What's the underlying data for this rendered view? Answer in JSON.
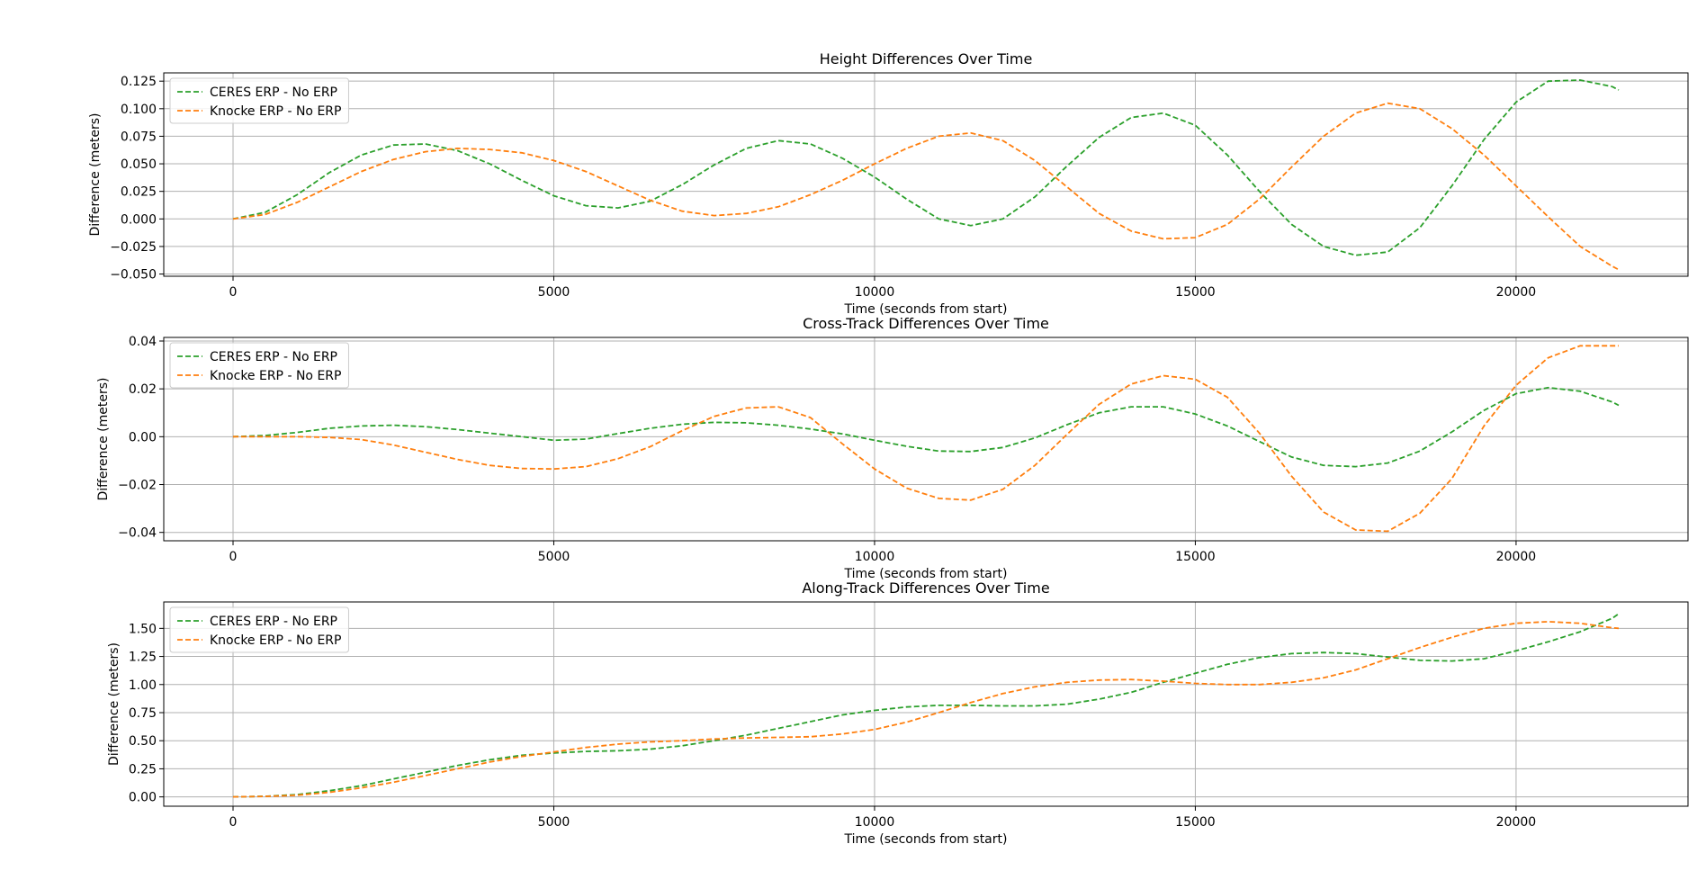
{
  "chart_data": [
    {
      "type": "line",
      "title": "Height Differences Over Time",
      "xlabel": "Time (seconds from start)",
      "ylabel": "Difference (meters)",
      "xlim": [
        -1080,
        22680
      ],
      "ylim": [
        -0.052,
        0.1325
      ],
      "xticks": [
        0,
        5000,
        10000,
        15000,
        20000
      ],
      "xtick_labels": [
        "0",
        "5000",
        "10000",
        "15000",
        "20000"
      ],
      "yticks": [
        -0.05,
        -0.025,
        0.0,
        0.025,
        0.05,
        0.075,
        0.1,
        0.125
      ],
      "ytick_labels": [
        "−0.050",
        "−0.025",
        "0.000",
        "0.025",
        "0.050",
        "0.075",
        "0.100",
        "0.125"
      ],
      "grid": true,
      "legend_position": "upper-left",
      "series": [
        {
          "name": "CERES ERP - No ERP",
          "color": "#2ca02c",
          "style": "dashed",
          "x": [
            0,
            500,
            1000,
            1500,
            2000,
            2500,
            3000,
            3500,
            4000,
            4500,
            5000,
            5500,
            6000,
            6500,
            7000,
            7500,
            8000,
            8500,
            9000,
            9500,
            10000,
            10500,
            11000,
            11500,
            12000,
            12500,
            13000,
            13500,
            14000,
            14500,
            15000,
            15500,
            16000,
            16500,
            17000,
            17500,
            18000,
            18500,
            19000,
            19500,
            20000,
            20500,
            21000,
            21500,
            21600
          ],
          "y": [
            0.0,
            0.006,
            0.022,
            0.042,
            0.058,
            0.067,
            0.068,
            0.062,
            0.05,
            0.035,
            0.021,
            0.012,
            0.01,
            0.016,
            0.031,
            0.049,
            0.064,
            0.071,
            0.068,
            0.055,
            0.038,
            0.018,
            0.0,
            -0.006,
            0.0,
            0.02,
            0.048,
            0.074,
            0.092,
            0.096,
            0.085,
            0.058,
            0.025,
            -0.005,
            -0.025,
            -0.033,
            -0.03,
            -0.008,
            0.03,
            0.072,
            0.106,
            0.125,
            0.126,
            0.12,
            0.117
          ]
        },
        {
          "name": "Knocke ERP - No ERP",
          "color": "#ff7f0e",
          "style": "dashed",
          "x": [
            0,
            500,
            1000,
            1500,
            2000,
            2500,
            3000,
            3500,
            4000,
            4500,
            5000,
            5500,
            6000,
            6500,
            7000,
            7500,
            8000,
            8500,
            9000,
            9500,
            10000,
            10500,
            11000,
            11500,
            12000,
            12500,
            13000,
            13500,
            14000,
            14500,
            15000,
            15500,
            16000,
            16500,
            17000,
            17500,
            18000,
            18500,
            19000,
            19500,
            20000,
            20500,
            21000,
            21500,
            21600
          ],
          "y": [
            0.0,
            0.004,
            0.015,
            0.029,
            0.043,
            0.054,
            0.061,
            0.064,
            0.063,
            0.06,
            0.053,
            0.043,
            0.03,
            0.017,
            0.007,
            0.003,
            0.005,
            0.011,
            0.022,
            0.035,
            0.05,
            0.064,
            0.075,
            0.078,
            0.071,
            0.053,
            0.029,
            0.005,
            -0.011,
            -0.018,
            -0.017,
            -0.005,
            0.018,
            0.047,
            0.075,
            0.096,
            0.105,
            0.1,
            0.082,
            0.058,
            0.03,
            0.002,
            -0.025,
            -0.043,
            -0.046
          ]
        }
      ]
    },
    {
      "type": "line",
      "title": "Cross-Track Differences Over Time",
      "xlabel": "Time (seconds from start)",
      "ylabel": "Difference (meters)",
      "xlim": [
        -1080,
        22680
      ],
      "ylim": [
        -0.0435,
        0.0415
      ],
      "xticks": [
        0,
        5000,
        10000,
        15000,
        20000
      ],
      "xtick_labels": [
        "0",
        "5000",
        "10000",
        "15000",
        "20000"
      ],
      "yticks": [
        -0.04,
        -0.02,
        0.0,
        0.02,
        0.04
      ],
      "ytick_labels": [
        "−0.04",
        "−0.02",
        "0.00",
        "0.02",
        "0.04"
      ],
      "grid": true,
      "legend_position": "upper-left",
      "series": [
        {
          "name": "CERES ERP - No ERP",
          "color": "#2ca02c",
          "style": "dashed",
          "x": [
            0,
            500,
            1000,
            1500,
            2000,
            2500,
            3000,
            3500,
            4000,
            4500,
            5000,
            5500,
            6000,
            6500,
            7000,
            7500,
            8000,
            8500,
            9000,
            9500,
            10000,
            10500,
            11000,
            11500,
            12000,
            12500,
            13000,
            13500,
            14000,
            14500,
            15000,
            15500,
            16000,
            16500,
            17000,
            17500,
            18000,
            18500,
            19000,
            19500,
            20000,
            20500,
            21000,
            21500,
            21600
          ],
          "y": [
            0.0,
            0.0005,
            0.0018,
            0.0035,
            0.0045,
            0.0048,
            0.0042,
            0.003,
            0.0015,
            0.0,
            -0.0015,
            -0.001,
            0.0013,
            0.0035,
            0.0052,
            0.006,
            0.0058,
            0.0048,
            0.0032,
            0.0012,
            -0.0015,
            -0.004,
            -0.006,
            -0.0062,
            -0.0045,
            -0.0005,
            0.005,
            0.01,
            0.0125,
            0.0125,
            0.0095,
            0.0045,
            -0.002,
            -0.0085,
            -0.012,
            -0.0125,
            -0.011,
            -0.006,
            0.002,
            0.011,
            0.018,
            0.0205,
            0.019,
            0.0145,
            0.0131
          ]
        },
        {
          "name": "Knocke ERP - No ERP",
          "color": "#ff7f0e",
          "style": "dashed",
          "x": [
            0,
            500,
            1000,
            1500,
            2000,
            2500,
            3000,
            3500,
            4000,
            4500,
            5000,
            5500,
            6000,
            6500,
            7000,
            7500,
            8000,
            8500,
            9000,
            9500,
            10000,
            10500,
            11000,
            11500,
            12000,
            12500,
            13000,
            13500,
            14000,
            14500,
            15000,
            15500,
            16000,
            16500,
            17000,
            17500,
            18000,
            18500,
            19000,
            19500,
            20000,
            20500,
            21000,
            21500,
            21600
          ],
          "y": [
            0.0,
            0.0,
            0.0,
            -0.0003,
            -0.0012,
            -0.0035,
            -0.0065,
            -0.0095,
            -0.012,
            -0.0133,
            -0.0135,
            -0.0125,
            -0.0092,
            -0.0042,
            0.0025,
            0.0085,
            0.012,
            0.0125,
            0.008,
            -0.003,
            -0.0135,
            -0.0215,
            -0.0258,
            -0.0265,
            -0.022,
            -0.012,
            0.001,
            0.0135,
            0.022,
            0.0255,
            0.024,
            0.0165,
            0.0015,
            -0.0165,
            -0.0315,
            -0.039,
            -0.0395,
            -0.032,
            -0.0175,
            0.0045,
            0.0215,
            0.033,
            0.038,
            0.038,
            0.038
          ]
        }
      ]
    },
    {
      "type": "line",
      "title": "Along-Track Differences Over Time",
      "xlabel": "Time (seconds from start)",
      "ylabel": "Difference (meters)",
      "xlim": [
        -1080,
        22680
      ],
      "ylim": [
        -0.083,
        1.735
      ],
      "xticks": [
        0,
        5000,
        10000,
        15000,
        20000
      ],
      "xtick_labels": [
        "0",
        "5000",
        "10000",
        "15000",
        "20000"
      ],
      "yticks": [
        0.0,
        0.25,
        0.5,
        0.75,
        1.0,
        1.25,
        1.5
      ],
      "ytick_labels": [
        "0.00",
        "0.25",
        "0.50",
        "0.75",
        "1.00",
        "1.25",
        "1.50"
      ],
      "grid": true,
      "legend_position": "upper-left",
      "series": [
        {
          "name": "CERES ERP - No ERP",
          "color": "#2ca02c",
          "style": "dashed",
          "x": [
            0,
            500,
            1000,
            1500,
            2000,
            2500,
            3000,
            3500,
            4000,
            4500,
            5000,
            5500,
            6000,
            6500,
            7000,
            7500,
            8000,
            8500,
            9000,
            9500,
            10000,
            10500,
            11000,
            11500,
            12000,
            12500,
            13000,
            13500,
            14000,
            14500,
            15000,
            15500,
            16000,
            16500,
            17000,
            17500,
            18000,
            18500,
            19000,
            19500,
            20000,
            20500,
            21000,
            21500,
            21600
          ],
          "y": [
            0.0,
            0.005,
            0.02,
            0.055,
            0.1,
            0.16,
            0.22,
            0.28,
            0.33,
            0.37,
            0.39,
            0.405,
            0.41,
            0.425,
            0.455,
            0.5,
            0.55,
            0.61,
            0.67,
            0.73,
            0.77,
            0.8,
            0.815,
            0.815,
            0.81,
            0.81,
            0.825,
            0.87,
            0.93,
            1.02,
            1.1,
            1.18,
            1.24,
            1.275,
            1.285,
            1.275,
            1.245,
            1.215,
            1.21,
            1.23,
            1.3,
            1.38,
            1.47,
            1.59,
            1.63
          ]
        },
        {
          "name": "Knocke ERP - No ERP",
          "color": "#ff7f0e",
          "style": "dashed",
          "x": [
            0,
            500,
            1000,
            1500,
            2000,
            2500,
            3000,
            3500,
            4000,
            4500,
            5000,
            5500,
            6000,
            6500,
            7000,
            7500,
            8000,
            8500,
            9000,
            9500,
            10000,
            10500,
            11000,
            11500,
            12000,
            12500,
            13000,
            13500,
            14000,
            14500,
            15000,
            15500,
            16000,
            16500,
            17000,
            17500,
            18000,
            18500,
            19000,
            19500,
            20000,
            20500,
            21000,
            21500,
            21600
          ],
          "y": [
            0.0,
            0.004,
            0.015,
            0.04,
            0.08,
            0.13,
            0.19,
            0.25,
            0.31,
            0.36,
            0.4,
            0.44,
            0.47,
            0.49,
            0.5,
            0.515,
            0.525,
            0.53,
            0.535,
            0.56,
            0.6,
            0.665,
            0.75,
            0.84,
            0.92,
            0.98,
            1.02,
            1.04,
            1.045,
            1.03,
            1.01,
            1.0,
            1.0,
            1.02,
            1.06,
            1.13,
            1.23,
            1.33,
            1.42,
            1.5,
            1.545,
            1.56,
            1.545,
            1.505,
            1.5
          ]
        }
      ]
    }
  ]
}
